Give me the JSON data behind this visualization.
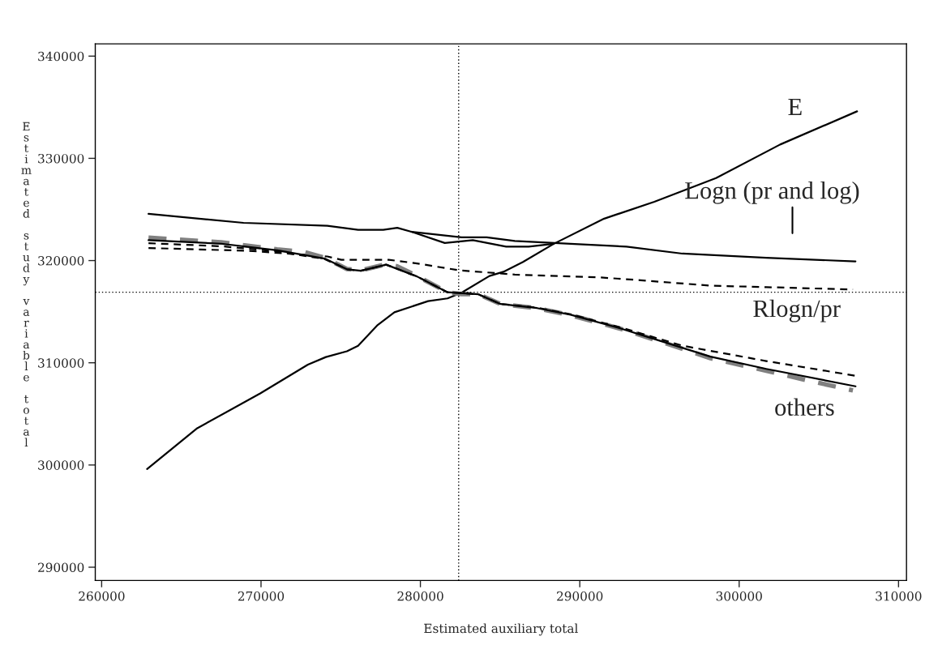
{
  "chart_data": {
    "type": "line",
    "xlabel": "Estimated auxiliary total",
    "ylabel": "Estimated study variable total",
    "xlim": [
      259600,
      310500
    ],
    "ylim": [
      288700,
      341200
    ],
    "xticks": [
      260000,
      270000,
      280000,
      290000,
      300000,
      310000
    ],
    "yticks": [
      290000,
      300000,
      310000,
      320000,
      330000,
      340000
    ],
    "grid": false,
    "legend": false,
    "marker": "none",
    "series": [
      {
        "name": "E",
        "color": "#000000",
        "line_style": "solid",
        "x": [
          262850,
          266000,
          269950,
          272940,
          274070,
          275390,
          276090,
          277320,
          278370,
          280480,
          281700,
          282580,
          284330,
          285210,
          286440,
          288370,
          291530,
          294680,
          298550,
          302570,
          307400
        ],
        "values": [
          299600,
          303600,
          307000,
          309820,
          310560,
          311130,
          311670,
          313700,
          314940,
          316030,
          316300,
          316850,
          318490,
          318900,
          319860,
          321640,
          324100,
          325750,
          328070,
          331350,
          334600
        ]
      },
      {
        "name": "Logn (pr and log)",
        "color": "#000000",
        "line_style": "solid",
        "x": [
          262940,
          268900,
          274160,
          276090,
          277670,
          278550,
          279430,
          282580,
          284160,
          285920,
          289420,
          292930,
          296440,
          301700,
          307300
        ],
        "values": [
          324570,
          323690,
          323410,
          323010,
          323010,
          323200,
          322820,
          322270,
          322280,
          321910,
          321640,
          321360,
          320680,
          320270,
          319920
        ]
      },
      {
        "color": "#000000",
        "line_style": "solid",
        "x": [
          279430,
          281530,
          283290,
          285380,
          286790,
          288370
        ],
        "values": [
          322820,
          321720,
          321990,
          321360,
          321360,
          321640
        ]
      },
      {
        "name": "Rlogn/pr",
        "color": "#000000",
        "line_style": "dashed",
        "x": [
          262940,
          269250,
          274160,
          275040,
          278020,
          279780,
          282410,
          285920,
          291180,
          293810,
          298200,
          301700,
          307140
        ],
        "values": [
          321230,
          320950,
          320400,
          320080,
          320080,
          319720,
          319050,
          318630,
          318360,
          318080,
          317540,
          317400,
          317170
        ]
      },
      {
        "name": "others",
        "color": "#808080",
        "line_style": "dashed",
        "x": [
          262940,
          267500,
          271010,
          272760,
          273990,
          275390,
          276270,
          277850,
          278550,
          279780,
          281700,
          282580,
          283640,
          285030,
          287320,
          289420,
          292580,
          295040,
          298200,
          301700,
          304340,
          307140
        ],
        "values": [
          322240,
          321780,
          321090,
          320820,
          320270,
          319180,
          319040,
          319640,
          319440,
          318490,
          316900,
          316710,
          316710,
          315750,
          315340,
          314660,
          313320,
          312090,
          310450,
          309220,
          308260,
          307300
        ]
      },
      {
        "color": "#000000",
        "line_style": "solid",
        "x": [
          262940,
          267500,
          271010,
          273990,
          275390,
          276270,
          277850,
          279780,
          281700,
          283640,
          285030,
          287320,
          289420,
          292580,
          295040,
          298200,
          301700,
          307300
        ],
        "values": [
          322000,
          321650,
          321000,
          320200,
          319150,
          319000,
          319600,
          318450,
          316900,
          316700,
          315750,
          315350,
          314700,
          313350,
          312150,
          310600,
          309400,
          307700
        ]
      },
      {
        "color": "#000000",
        "line_style": "dashed",
        "x": [
          262940,
          267500,
          271010,
          273990,
          275390,
          276270,
          277850,
          279780,
          281700,
          283640,
          285030,
          287320,
          289420,
          292580,
          296440,
          301700,
          307300
        ],
        "values": [
          321700,
          321400,
          320900,
          320150,
          319150,
          319000,
          319600,
          318450,
          316900,
          316700,
          315750,
          315400,
          314750,
          313450,
          311670,
          310170,
          308730
        ]
      }
    ],
    "ref_lines": [
      {
        "axis": "x",
        "value": 282400,
        "line_style": "dotted",
        "color": "#000000"
      },
      {
        "axis": "y",
        "value": 316900,
        "line_style": "dotted",
        "color": "#000000"
      }
    ]
  }
}
